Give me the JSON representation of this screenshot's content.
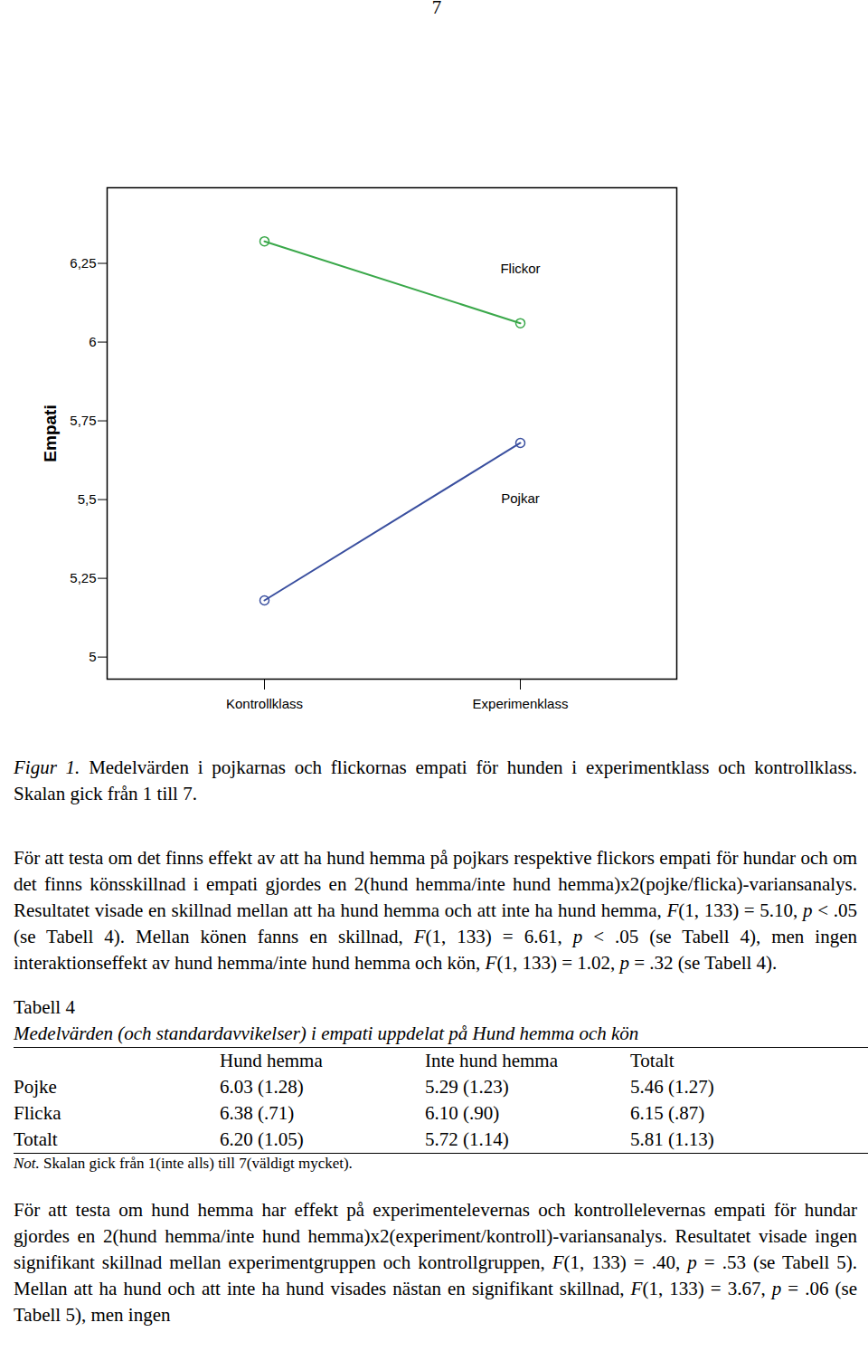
{
  "page_number": "7",
  "chart_data": {
    "type": "line",
    "y_label": "Empati",
    "categories": [
      "Kontrollklass",
      "Experimenklass"
    ],
    "series": [
      {
        "name": "Flickor",
        "color": "#3aa84a",
        "values": [
          6.32,
          6.06
        ],
        "marker": "circle"
      },
      {
        "name": "Pojkar",
        "color": "#3a4f9f",
        "values": [
          5.18,
          5.68
        ],
        "marker": "circle"
      }
    ],
    "ylim": [
      4.93,
      6.49
    ],
    "yticks": [
      5,
      {
        "value": 5.25,
        "label": "5,25"
      },
      {
        "value": 5.5,
        "label": "5,5"
      },
      {
        "value": 5.75,
        "label": "5,75"
      },
      6,
      {
        "value": 6.25,
        "label": "6,25"
      }
    ],
    "grid": false
  },
  "caption": {
    "label": "Figur 1.",
    "text": " Medelvärden i pojkarnas och flickornas empati för hunden i experimentklass och kontrollklass. Skalan gick från 1 till 7."
  },
  "paragraph_1": [
    "För att testa om det finns effekt av att ha hund hemma på pojkars respektive flickors empati för hundar och om det finns könsskillnad i empati gjordes en 2(hund hemma/inte hund hemma)x2(pojke/flicka)-variansanalys. Resultatet visade en skillnad mellan att ha hund hemma och att inte ha hund hemma, ",
    {
      "italic": "F"
    },
    "(1, 133) = 5.10, ",
    {
      "italic": "p"
    },
    " < .05 (se Tabell 4). Mellan könen fanns en skillnad, ",
    {
      "italic": "F"
    },
    "(1, 133) = 6.61, ",
    {
      "italic": "p"
    },
    " < .05 (se Tabell 4), men ingen interaktionseffekt av hund hemma/inte hund hemma och kön, ",
    {
      "italic": "F"
    },
    "(1, 133) = 1.02, ",
    {
      "italic": "p"
    },
    " = .32 (se Tabell 4)."
  ],
  "table": {
    "title": "Tabell 4",
    "subtitle": "Medelvärden (och standardavvikelser) i empati uppdelat på Hund hemma och kön",
    "columns": [
      "Hund hemma",
      "Inte hund hemma",
      "Totalt"
    ],
    "rows": [
      {
        "label": "Pojke",
        "cells": [
          "6.03 (1.28)",
          "5.29 (1.23)",
          "5.46 (1.27)"
        ]
      },
      {
        "label": "Flicka",
        "cells": [
          "6.38 (.71)",
          "6.10 (.90)",
          "6.15 (.87)"
        ]
      },
      {
        "label": "Totalt",
        "cells": [
          "6.20 (1.05)",
          "5.72 (1.14)",
          "5.81 (1.13)"
        ]
      }
    ],
    "note_label": "Not.",
    "note": " Skalan gick från 1(inte alls) till 7(väldigt mycket)."
  },
  "paragraph_2": [
    "För att testa om hund hemma har effekt på experimentelevernas och kontrollelevernas empati för hundar gjordes en 2(hund hemma/inte hund hemma)x2(experiment/kontroll)-variansanalys. Resultatet visade ingen signifikant skillnad mellan experimentgruppen och kontrollgruppen, ",
    {
      "italic": "F"
    },
    "(1, 133) = .40, ",
    {
      "italic": "p"
    },
    " = .53 (se Tabell 5). Mellan att ha hund och att inte ha hund visades nästan en signifikant skillnad, ",
    {
      "italic": "F"
    },
    "(1, 133) = 3.67, ",
    {
      "italic": "p"
    },
    " = .06 (se Tabell 5), men ingen"
  ]
}
